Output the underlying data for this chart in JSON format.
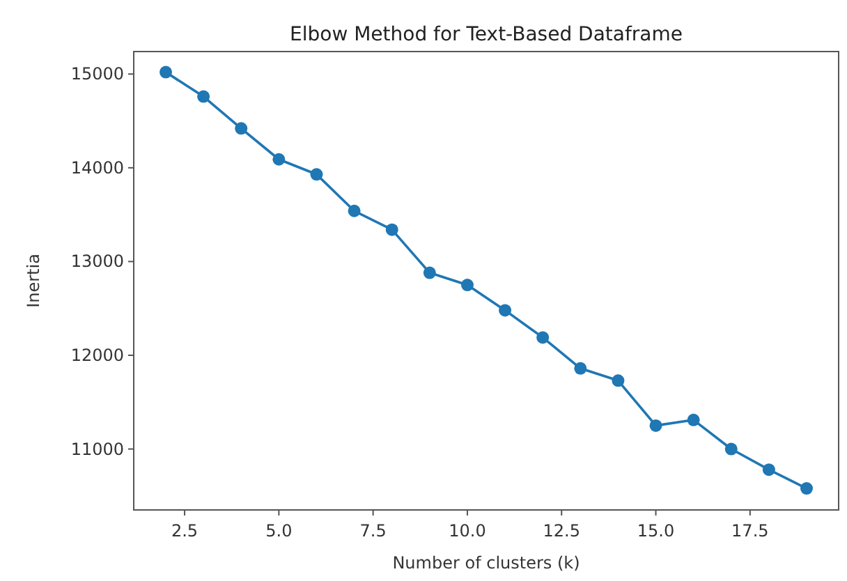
{
  "chart_data": {
    "type": "line",
    "title": "Elbow Method for Text-Based Dataframe",
    "xlabel": "Number of clusters (k)",
    "ylabel": "Inertia",
    "x": [
      2,
      3,
      4,
      5,
      6,
      7,
      8,
      9,
      10,
      11,
      12,
      13,
      14,
      15,
      16,
      17,
      18,
      19
    ],
    "series": [
      {
        "color": "#1f77b4",
        "values": [
          15020,
          14760,
          14420,
          14090,
          13930,
          13540,
          13340,
          12880,
          12750,
          12480,
          12190,
          11860,
          11730,
          11250,
          11310,
          11000,
          10780,
          10580
        ]
      }
    ],
    "xlim": [
      1.15,
      19.85
    ],
    "xticks": [
      {
        "value": 2.5,
        "label": "2.5"
      },
      {
        "value": 5,
        "label": "5.0"
      },
      {
        "value": 7.5,
        "label": "7.5"
      },
      {
        "value": 10,
        "label": "10.0"
      },
      {
        "value": 12.5,
        "label": "12.5"
      },
      {
        "value": 15,
        "label": "15.0"
      },
      {
        "value": 17.5,
        "label": "17.5"
      }
    ],
    "ylim": [
      10350,
      15240
    ],
    "yticks": [
      11000,
      12000,
      13000,
      14000,
      15000
    ],
    "marker": "circle",
    "line_style": "solid",
    "grid": false
  }
}
